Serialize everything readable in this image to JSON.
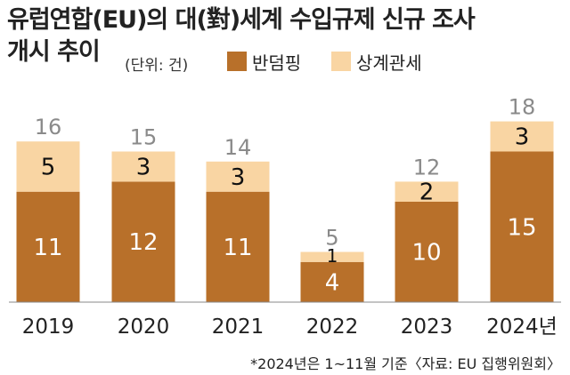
{
  "title_line1": "유럽연합(EU)의 대(對)세계 수입규제 신규 조사",
  "title_line2": "개시 추이",
  "unit": "(단위: 건)",
  "footnote": "*2024년은 1~11월 기준〈자료: EU 집행위원회〉",
  "colors": {
    "anti_dumping": "#b8702a",
    "countervailing": "#f9d5a3",
    "total_label": "#8a8a8a"
  },
  "chart_data": {
    "type": "bar",
    "stacked": true,
    "categories": [
      "2019",
      "2020",
      "2021",
      "2022",
      "2023",
      "2024년"
    ],
    "series": [
      {
        "name": "반덤핑",
        "values": [
          11,
          12,
          11,
          4,
          10,
          15
        ]
      },
      {
        "name": "상계관세",
        "values": [
          5,
          3,
          3,
          1,
          2,
          3
        ]
      }
    ],
    "totals": [
      16,
      15,
      14,
      5,
      12,
      18
    ],
    "legend": [
      "반덤핑",
      "상계관세"
    ],
    "legend_position": "top",
    "grid": false,
    "ylim": [
      0,
      18
    ]
  }
}
